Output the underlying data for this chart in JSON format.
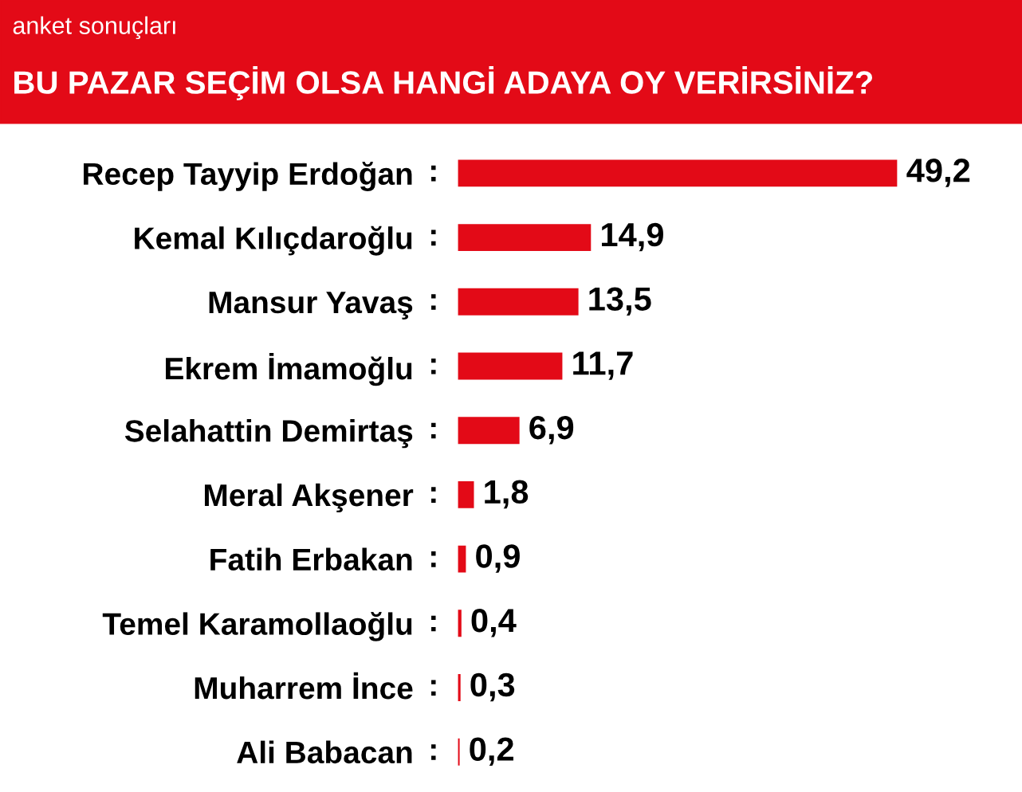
{
  "chart_data": {
    "type": "bar",
    "orientation": "horizontal",
    "subtitle": "anket sonuçları",
    "title": "BU PAZAR SEÇİM OLSA HANGİ ADAYA OY VERİRSİNİZ?",
    "categories": [
      "Recep Tayyip Erdoğan",
      "Kemal Kılıçdaroğlu",
      "Mansur Yavaş",
      "Ekrem İmamoğlu",
      "Selahattin Demirtaş",
      "Meral Akşener",
      "Fatih Erbakan",
      "Temel Karamollaoğlu",
      "Muharrem İnce",
      "Ali Babacan"
    ],
    "values": [
      49.2,
      14.9,
      13.5,
      11.7,
      6.9,
      1.8,
      0.9,
      0.4,
      0.3,
      0.2
    ],
    "value_labels": [
      "49,2",
      "14,9",
      "13,5",
      "11,7",
      "6,9",
      "1,8",
      "0,9",
      "0,4",
      "0,3",
      "0,2"
    ],
    "annotations": [
      ":",
      ":",
      ":",
      ":",
      ":",
      ":",
      ":",
      ":",
      ":",
      ":"
    ],
    "color": "#e30a17",
    "grid": false,
    "legend": false
  }
}
